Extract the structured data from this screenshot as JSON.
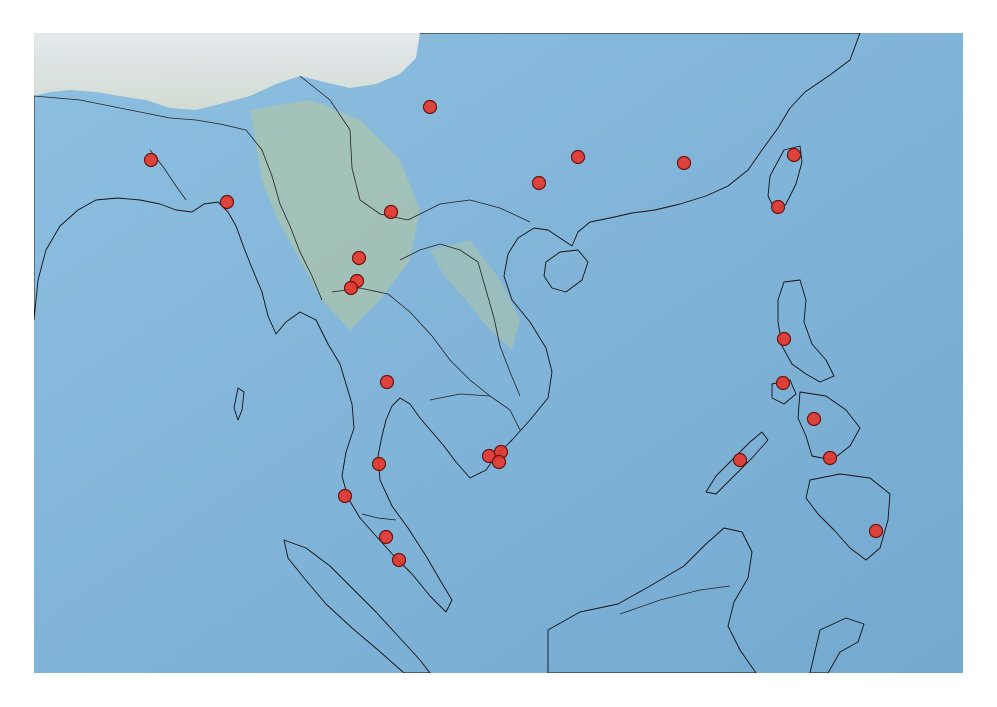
{
  "map": {
    "region": "Southeast Asia",
    "basemap": "shaded-relief",
    "marker_color": "#e8352b",
    "marker_stroke": "#6a1410",
    "ocean_color": "#83b6d8",
    "land_color": "#dfe6b4",
    "markers": [
      {
        "id": "marker-1"
      },
      {
        "id": "marker-2"
      },
      {
        "id": "marker-3"
      },
      {
        "id": "marker-4"
      },
      {
        "id": "marker-5"
      },
      {
        "id": "marker-6"
      },
      {
        "id": "marker-7"
      },
      {
        "id": "marker-8"
      },
      {
        "id": "marker-9"
      },
      {
        "id": "marker-10"
      },
      {
        "id": "marker-11"
      },
      {
        "id": "marker-12"
      },
      {
        "id": "marker-13"
      },
      {
        "id": "marker-14"
      },
      {
        "id": "marker-15"
      },
      {
        "id": "marker-16"
      },
      {
        "id": "marker-17"
      },
      {
        "id": "marker-18"
      },
      {
        "id": "marker-19"
      },
      {
        "id": "marker-20"
      },
      {
        "id": "marker-21"
      },
      {
        "id": "marker-22"
      },
      {
        "id": "marker-23"
      },
      {
        "id": "marker-24"
      },
      {
        "id": "marker-25"
      },
      {
        "id": "marker-26"
      },
      {
        "id": "marker-27"
      },
      {
        "id": "marker-28"
      },
      {
        "id": "marker-29"
      }
    ]
  }
}
